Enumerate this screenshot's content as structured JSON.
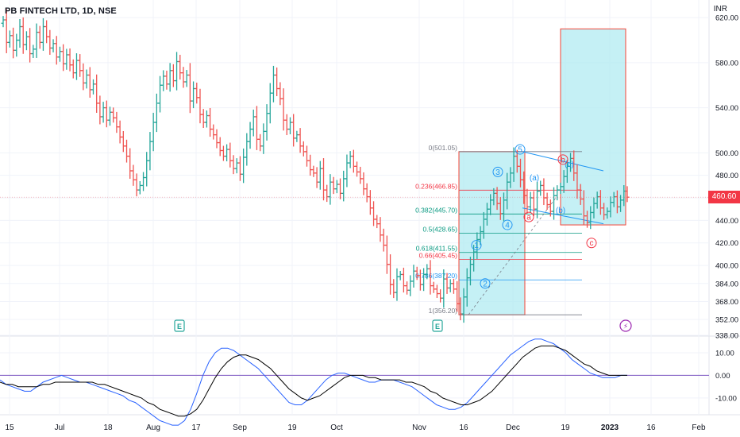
{
  "header": {
    "symbol_title": "PB FINTECH LTD, 1D, NSE",
    "currency": "INR",
    "last_price_label": "460.60"
  },
  "colors": {
    "up": "#26a69a",
    "down": "#ef5350",
    "grid": "#f0f3fa",
    "axis_text": "#131722",
    "macd": "#2962ff",
    "signal": "#000000",
    "zero": "#7e57c2",
    "box_fill": "#b2ebf2",
    "box_stroke": "#f44336",
    "fib_red": "#f23645",
    "fib_green": "#089981",
    "channel": "#2196f3"
  },
  "chart_data": [
    {
      "type": "candlestick",
      "title": "PB FINTECH LTD, 1D, NSE",
      "x_tick_labels": [
        "15",
        "Jul",
        "18",
        "Aug",
        "17",
        "Sep",
        "19",
        "Oct",
        "Nov",
        "16",
        "Dec",
        "19",
        "2023",
        "16",
        "Feb"
      ],
      "y_tick_labels": [
        "620.00",
        "580.00",
        "540.00",
        "500.00",
        "480.00",
        "460.00",
        "440.00",
        "420.00",
        "400.00",
        "384.00",
        "368.00",
        "352.00",
        "338.00"
      ],
      "ylim": [
        338,
        630
      ],
      "last_price": 460.6,
      "close_series": [
        618,
        598,
        604,
        591,
        600,
        612,
        596,
        603,
        588,
        592,
        607,
        598,
        612,
        603,
        593,
        597,
        585,
        590,
        579,
        587,
        578,
        571,
        582,
        573,
        562,
        569,
        556,
        561,
        544,
        532,
        540,
        529,
        536,
        531,
        523,
        514,
        506,
        497,
        484,
        476,
        467,
        471,
        478,
        493,
        510,
        527,
        544,
        560,
        568,
        561,
        573,
        564,
        581,
        571,
        563,
        569,
        546,
        557,
        549,
        534,
        527,
        533,
        521,
        516,
        509,
        502,
        497,
        503,
        493,
        486,
        491,
        481,
        496,
        510,
        521,
        532,
        512,
        506,
        519,
        535,
        553,
        569,
        557,
        548,
        529,
        521,
        527,
        513,
        516,
        506,
        501,
        493,
        485,
        482,
        474,
        486,
        467,
        461,
        474,
        468,
        472,
        464,
        477,
        491,
        497,
        488,
        483,
        477,
        468,
        461,
        451,
        441,
        437,
        427,
        418,
        401,
        383,
        376,
        390,
        392,
        382,
        378,
        386,
        395,
        391,
        383,
        392,
        397,
        382,
        379,
        375,
        371,
        388,
        380,
        384,
        379,
        366,
        357,
        372,
        389,
        401,
        412,
        423,
        430,
        441,
        450,
        458,
        464,
        455,
        446,
        458,
        474,
        482,
        497,
        488,
        476,
        462,
        452,
        460,
        450,
        466,
        471,
        460,
        454,
        448,
        462,
        467,
        470,
        479,
        488,
        495,
        482,
        467,
        459,
        444,
        438,
        447,
        455,
        461,
        451,
        445,
        448,
        456,
        461,
        452,
        458,
        466,
        460.6
      ],
      "macd": [
        -2,
        -4,
        -5,
        -6,
        -7,
        -7,
        -5,
        -3,
        -2,
        -1,
        0,
        -1,
        -2,
        -3,
        -3,
        -4,
        -5,
        -6,
        -7,
        -8,
        -9,
        -11,
        -12,
        -14,
        -16,
        -18,
        -20,
        -21,
        -22,
        -22,
        -20,
        -15,
        -8,
        0,
        6,
        10,
        12,
        12,
        11,
        9,
        7,
        5,
        3,
        0,
        -3,
        -6,
        -9,
        -12,
        -13,
        -13,
        -11,
        -8,
        -5,
        -2,
        0,
        1,
        1,
        0,
        -1,
        -2,
        -3,
        -3,
        -2,
        -2,
        -2,
        -3,
        -4,
        -5,
        -7,
        -9,
        -11,
        -13,
        -14,
        -15,
        -15,
        -14,
        -12,
        -9,
        -6,
        -3,
        0,
        3,
        6,
        9,
        11,
        13,
        15,
        16,
        16,
        15,
        14,
        12,
        10,
        7,
        5,
        3,
        1,
        0,
        -1,
        -1,
        -1,
        0,
        0
      ],
      "signal": [
        -3,
        -4,
        -4,
        -5,
        -5,
        -5,
        -5,
        -4,
        -4,
        -3,
        -3,
        -3,
        -3,
        -3,
        -3,
        -3,
        -4,
        -4,
        -5,
        -6,
        -7,
        -8,
        -9,
        -10,
        -12,
        -13,
        -15,
        -16,
        -17,
        -18,
        -18,
        -17,
        -15,
        -11,
        -6,
        -1,
        3,
        6,
        8,
        9,
        9,
        8,
        7,
        5,
        3,
        0,
        -3,
        -6,
        -8,
        -10,
        -11,
        -10,
        -9,
        -7,
        -5,
        -3,
        -1,
        0,
        0,
        0,
        -1,
        -1,
        -2,
        -2,
        -2,
        -2,
        -3,
        -3,
        -4,
        -5,
        -7,
        -8,
        -10,
        -11,
        -12,
        -13,
        -13,
        -12,
        -11,
        -9,
        -7,
        -4,
        -1,
        2,
        5,
        8,
        10,
        12,
        13,
        13,
        13,
        12,
        11,
        9,
        7,
        5,
        4,
        2,
        1,
        0,
        0,
        0,
        0
      ],
      "macd_y_tick_labels": [
        "10.00",
        "0.00",
        "-10.00"
      ],
      "macd_ylim": [
        -16,
        17
      ],
      "earnings_markers": [
        "E",
        "E"
      ],
      "dividend_marker": "⚡"
    }
  ],
  "annotations": {
    "fib_levels": [
      {
        "label": "0(501.05)",
        "value": 501.05,
        "color": "#787b86"
      },
      {
        "label": "0.236(466.85)",
        "value": 466.85,
        "color": "#f23645"
      },
      {
        "label": "0.382(445.70)",
        "value": 445.7,
        "color": "#089981"
      },
      {
        "label": "0.5(428.65)",
        "value": 428.65,
        "color": "#089981"
      },
      {
        "label": "0.618(411.55)",
        "value": 411.55,
        "color": "#089981"
      },
      {
        "label": "0.66(405.45)",
        "value": 405.45,
        "color": "#f23645"
      },
      {
        "label": "0.786(387.20)",
        "value": 387.2,
        "color": "#2196f3"
      },
      {
        "label": "1(356.20)",
        "value": 356.2,
        "color": "#787b86"
      }
    ],
    "wave_labels": [
      {
        "text": "1",
        "color": "#2196f3"
      },
      {
        "text": "2",
        "color": "#2196f3"
      },
      {
        "text": "3",
        "color": "#2196f3"
      },
      {
        "text": "4",
        "color": "#2196f3"
      },
      {
        "text": "5",
        "color": "#2196f3"
      },
      {
        "text": "(a)",
        "color": "#2196f3"
      },
      {
        "text": "(b)",
        "color": "#2196f3"
      },
      {
        "text": "(c)",
        "color": "#2196f3"
      },
      {
        "text": "a",
        "color": "#f23645"
      },
      {
        "text": "b",
        "color": "#f23645"
      },
      {
        "text": "c",
        "color": "#f23645"
      }
    ]
  }
}
